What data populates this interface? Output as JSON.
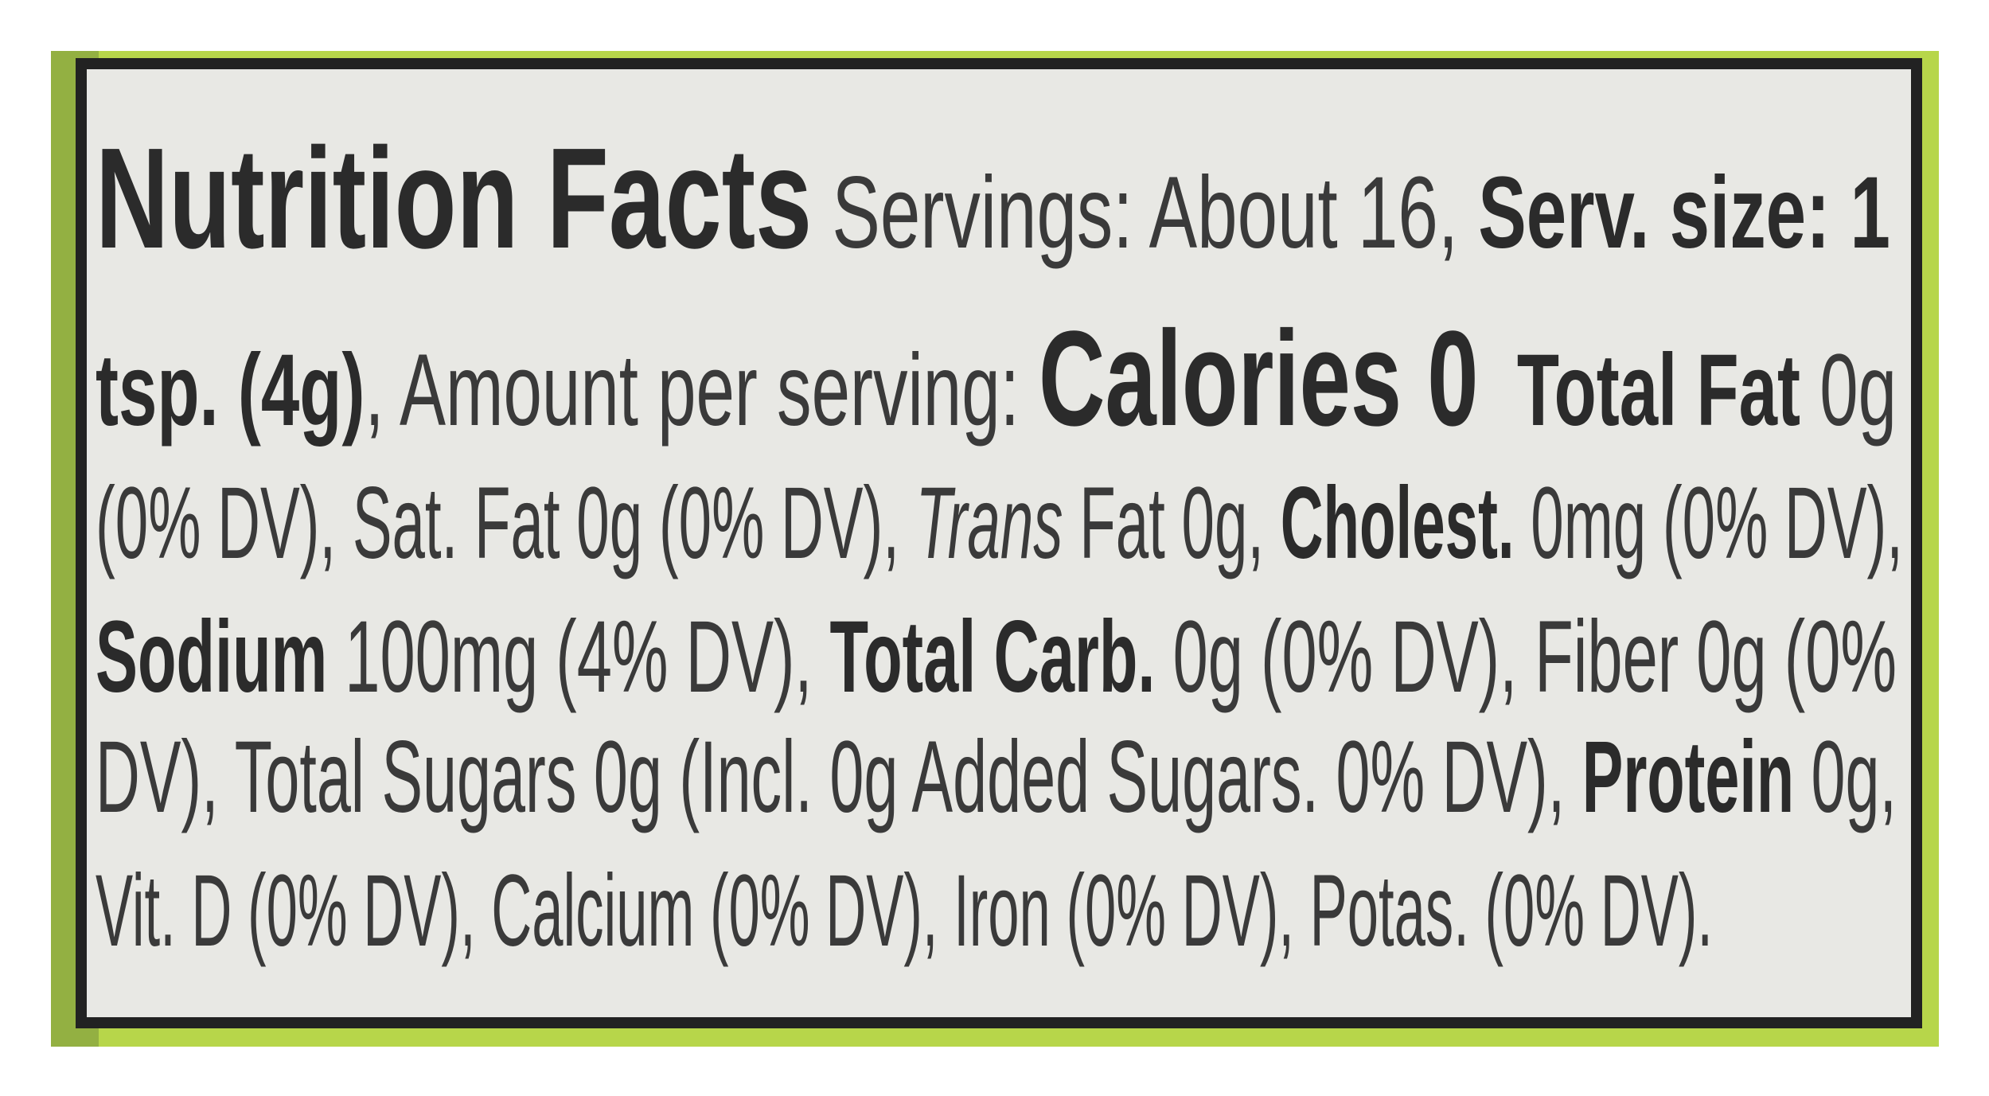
{
  "label": {
    "lines": [
      [
        {
          "text": "Nutrition Facts",
          "style": "title"
        },
        {
          "text": " Servings: About 16, ",
          "style": "regular"
        },
        {
          "text": "Serv. size: 1",
          "style": "bold"
        }
      ],
      [
        {
          "text": "tsp. (4g)",
          "style": "bold"
        },
        {
          "text": ", Amount per serving: ",
          "style": "regular"
        },
        {
          "text": "Calories 0",
          "style": "big"
        },
        {
          "text": "  Total Fat",
          "style": "bold"
        },
        {
          "text": " 0g",
          "style": "regular"
        }
      ],
      [
        {
          "text": "(0% DV), Sat. Fat 0g (0% DV), ",
          "style": "regular"
        },
        {
          "text": "Trans",
          "style": "italic"
        },
        {
          "text": " Fat 0g, ",
          "style": "regular"
        },
        {
          "text": "Cholest.",
          "style": "bold"
        },
        {
          "text": " 0mg (0% DV),",
          "style": "regular"
        }
      ],
      [
        {
          "text": "Sodium",
          "style": "bold"
        },
        {
          "text": " 100mg (4% DV), ",
          "style": "regular"
        },
        {
          "text": "Total Carb.",
          "style": "bold"
        },
        {
          "text": " 0g (0% DV), Fiber 0g (0%",
          "style": "regular"
        }
      ],
      [
        {
          "text": "DV), Total Sugars 0g (Incl. 0g Added Sugars. 0% DV), ",
          "style": "regular"
        },
        {
          "text": "Protein",
          "style": "bold"
        },
        {
          "text": " 0g,",
          "style": "regular"
        }
      ],
      [
        {
          "text": "Vit. D (0% DV), Calcium (0% DV), Iron (0% DV), Potas. (0% DV).",
          "style": "regular"
        }
      ]
    ]
  }
}
